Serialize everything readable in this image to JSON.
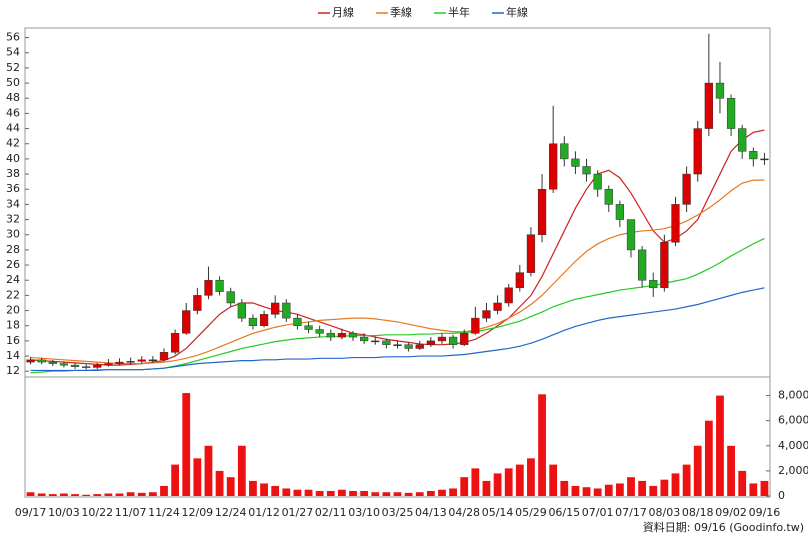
{
  "chart_data": [
    {
      "type": "candlestick",
      "categories": [
        "09/17",
        null,
        null,
        "10/03",
        null,
        null,
        "10/22",
        null,
        null,
        "11/07",
        null,
        null,
        "11/24",
        null,
        null,
        "12/09",
        null,
        null,
        "12/24",
        null,
        null,
        "01/12",
        null,
        null,
        "01/27",
        null,
        null,
        "02/11",
        null,
        null,
        "03/10",
        null,
        null,
        "03/25",
        null,
        null,
        "04/13",
        null,
        null,
        "04/28",
        null,
        null,
        "05/14",
        null,
        null,
        "05/29",
        null,
        null,
        "06/15",
        null,
        null,
        "07/01",
        null,
        null,
        "07/17",
        null,
        null,
        "08/03",
        null,
        null,
        "08/18",
        null,
        null,
        "09/02",
        null,
        null,
        "09/16"
      ],
      "open": [
        13.2,
        13.5,
        13.2,
        13,
        12.8,
        12.6,
        12.5,
        12.8,
        13,
        13.2,
        13.3,
        13.5,
        13.5,
        14.5,
        17,
        20,
        22,
        24,
        22.5,
        21,
        19,
        18,
        19.5,
        21,
        19,
        18,
        17.5,
        17,
        16.5,
        17,
        16.5,
        16,
        16,
        15.5,
        15.5,
        15,
        15.5,
        16,
        16.5,
        15.5,
        17,
        19,
        20,
        21,
        23,
        25,
        30,
        36,
        42,
        40,
        39,
        38,
        36,
        34,
        32,
        28,
        24,
        23,
        29,
        34,
        38,
        44,
        50,
        48,
        44,
        41,
        40
      ],
      "high": [
        13.9,
        13.8,
        13.5,
        13.3,
        13.1,
        12.9,
        13.1,
        13.6,
        13.7,
        13.8,
        14,
        14,
        15,
        17.5,
        21,
        23,
        25.8,
        24.5,
        23,
        21.5,
        19.5,
        20,
        22,
        21.5,
        19.5,
        18.5,
        18,
        17.5,
        17.6,
        17.3,
        17,
        16.6,
        16.3,
        16,
        15.8,
        16,
        16.5,
        17,
        16.8,
        17.5,
        20.5,
        21,
        22,
        23.5,
        26,
        31,
        38,
        47,
        43,
        41,
        40,
        38.5,
        36.5,
        34.5,
        32,
        28.5,
        25,
        30,
        35,
        39,
        45,
        56.5,
        52.8,
        48.5,
        44.5,
        41.5,
        40.8
      ],
      "low": [
        12.9,
        12.9,
        12.7,
        12.5,
        12.3,
        12.2,
        12.3,
        12.6,
        12.8,
        12.9,
        13,
        13.1,
        13.3,
        14.2,
        16.8,
        19.5,
        21.5,
        22,
        20.5,
        18.5,
        17.5,
        17.8,
        19,
        18.5,
        17.5,
        17,
        16.5,
        16,
        16.2,
        16,
        15.6,
        15.5,
        15,
        15,
        14.6,
        14.8,
        15.2,
        15.6,
        15,
        15.3,
        16.8,
        18.5,
        19.5,
        20.5,
        22.5,
        24.5,
        29,
        35.5,
        39,
        38,
        37,
        35,
        33,
        31,
        27,
        23,
        21.8,
        22.5,
        28.5,
        33,
        37,
        43,
        46,
        43,
        40,
        39,
        39.2
      ],
      "close": [
        13.5,
        13.2,
        13,
        12.8,
        12.6,
        12.5,
        12.8,
        13,
        13.2,
        13.3,
        13.5,
        13.5,
        14.5,
        17,
        20,
        22,
        24,
        22.5,
        21,
        19,
        18,
        19.5,
        21,
        19,
        18,
        17.5,
        17,
        16.5,
        17,
        16.5,
        16,
        16,
        15.5,
        15.5,
        15,
        15.5,
        16,
        16.5,
        15.5,
        17,
        19,
        20,
        21,
        23,
        25,
        30,
        36,
        42,
        40,
        39,
        38,
        36,
        34,
        32,
        28,
        24,
        23,
        29,
        34,
        38,
        44,
        50,
        48,
        44,
        41,
        40,
        40
      ],
      "up_color": "#dd0000",
      "down_color": "#22aa22",
      "series": [
        {
          "name": "月線",
          "color": "#cc2222",
          "values": [
            13.5,
            13.4,
            13.3,
            13.2,
            13.1,
            13,
            12.9,
            12.8,
            12.8,
            12.9,
            13,
            13.2,
            13.4,
            14,
            15,
            16.5,
            18,
            19.5,
            20.5,
            21,
            21,
            20.5,
            20,
            19.8,
            19.5,
            19,
            18.5,
            18,
            17.5,
            17,
            16.8,
            16.5,
            16.2,
            16,
            15.8,
            15.6,
            15.5,
            15.5,
            15.6,
            15.8,
            16.2,
            17,
            18,
            19,
            20.5,
            22,
            24.5,
            27.5,
            30.5,
            33.5,
            36,
            38,
            38.5,
            37.5,
            35.5,
            33,
            30.5,
            29,
            29.5,
            30.5,
            32,
            35,
            38,
            41,
            42.5,
            43.5,
            43.8
          ]
        },
        {
          "name": "季線",
          "color": "#e87820",
          "values": [
            13.8,
            13.7,
            13.6,
            13.5,
            13.4,
            13.3,
            13.2,
            13.1,
            13,
            13,
            13,
            13.1,
            13.2,
            13.4,
            13.7,
            14.1,
            14.6,
            15.2,
            15.8,
            16.4,
            17,
            17.4,
            17.8,
            18.1,
            18.3,
            18.5,
            18.7,
            18.8,
            18.9,
            19,
            19,
            18.9,
            18.7,
            18.5,
            18.2,
            17.9,
            17.6,
            17.4,
            17.2,
            17.2,
            17.4,
            17.8,
            18.3,
            19,
            19.8,
            20.8,
            22,
            23.5,
            25,
            26.5,
            27.8,
            28.8,
            29.5,
            30,
            30.3,
            30.5,
            30.6,
            30.8,
            31.2,
            31.8,
            32.6,
            33.5,
            34.6,
            35.8,
            36.8,
            37.2,
            37.2
          ]
        },
        {
          "name": "半年",
          "color": "#22cc22",
          "values": [
            11.8,
            11.9,
            12,
            12,
            12.1,
            12.1,
            12.2,
            12.2,
            12.2,
            12.2,
            12.2,
            12.3,
            12.4,
            12.7,
            13,
            13.4,
            13.8,
            14.2,
            14.6,
            15,
            15.3,
            15.6,
            15.9,
            16.1,
            16.3,
            16.4,
            16.5,
            16.6,
            16.6,
            16.7,
            16.7,
            16.7,
            16.8,
            16.8,
            16.8,
            16.9,
            16.9,
            17,
            17,
            17.1,
            17.2,
            17.5,
            17.8,
            18.2,
            18.6,
            19.2,
            19.8,
            20.5,
            21,
            21.5,
            21.8,
            22.1,
            22.4,
            22.7,
            22.9,
            23.1,
            23.3,
            23.6,
            23.9,
            24.2,
            24.8,
            25.5,
            26.3,
            27.2,
            28,
            28.8,
            29.5
          ]
        },
        {
          "name": "年線",
          "color": "#2266cc",
          "values": [
            12.1,
            12.1,
            12.1,
            12.1,
            12.1,
            12.1,
            12.1,
            12.2,
            12.2,
            12.2,
            12.2,
            12.3,
            12.4,
            12.6,
            12.8,
            13,
            13.1,
            13.2,
            13.3,
            13.4,
            13.4,
            13.5,
            13.5,
            13.6,
            13.6,
            13.6,
            13.7,
            13.7,
            13.7,
            13.8,
            13.8,
            13.8,
            13.9,
            13.9,
            13.9,
            14,
            14,
            14,
            14.1,
            14.2,
            14.4,
            14.6,
            14.8,
            15,
            15.3,
            15.7,
            16.2,
            16.8,
            17.4,
            17.9,
            18.3,
            18.7,
            19,
            19.2,
            19.4,
            19.6,
            19.8,
            20,
            20.2,
            20.5,
            20.8,
            21.2,
            21.6,
            22,
            22.4,
            22.7,
            23
          ]
        }
      ],
      "ylim": [
        11.5,
        57
      ],
      "yticks": [
        12,
        14,
        16,
        18,
        20,
        22,
        24,
        26,
        28,
        30,
        32,
        34,
        36,
        38,
        40,
        42,
        44,
        46,
        48,
        50,
        52,
        54,
        56
      ]
    },
    {
      "type": "bar",
      "color": "#ee1111",
      "values": [
        300,
        200,
        150,
        200,
        150,
        100,
        150,
        200,
        200,
        300,
        250,
        300,
        800,
        2500,
        8200,
        3000,
        4000,
        2000,
        1500,
        4000,
        1200,
        1000,
        800,
        600,
        500,
        500,
        400,
        400,
        500,
        400,
        400,
        300,
        300,
        300,
        250,
        300,
        400,
        500,
        600,
        1500,
        2200,
        1200,
        1800,
        2200,
        2500,
        3000,
        8100,
        2500,
        1200,
        800,
        700,
        600,
        900,
        1000,
        1500,
        1200,
        800,
        1300,
        1800,
        2500,
        4000,
        6000,
        8000,
        4000,
        2000,
        1000,
        1200
      ],
      "ylim": [
        0,
        9400
      ],
      "yticks": [
        0,
        {
          "value": 2000,
          "label": "2,000"
        },
        {
          "value": 4000,
          "label": "4,000"
        },
        {
          "value": 6000,
          "label": "6,000"
        },
        {
          "value": 8000,
          "label": "8,000"
        }
      ]
    }
  ],
  "footer": "資料日期: 09/16 (Goodinfo.tw)"
}
